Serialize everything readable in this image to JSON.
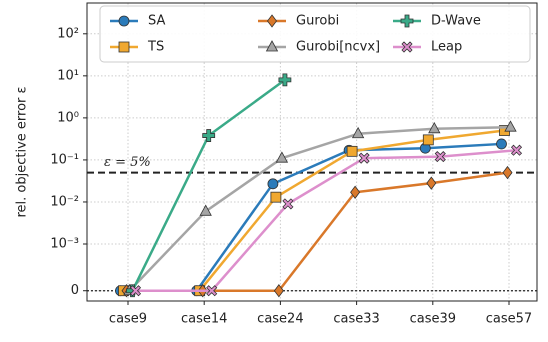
{
  "chart_data": {
    "type": "line",
    "y_label": "rel. objective error ε",
    "categories": [
      "case9",
      "case14",
      "case24",
      "case33",
      "case39",
      "case57"
    ],
    "y_scale": "symlog",
    "linthresh": 0.001,
    "ylim": [
      -0.00022,
      540
    ],
    "yticks": [
      0,
      {
        "value": 0.001,
        "label": "10⁻³"
      },
      {
        "value": 0.01,
        "label": "10⁻²"
      },
      {
        "value": 0.1,
        "label": "10⁻¹"
      },
      {
        "value": 1,
        "label": "10⁰"
      },
      {
        "value": 10,
        "label": "10¹"
      },
      {
        "value": 100,
        "label": "10²"
      }
    ],
    "grid": true,
    "legend": "upper center",
    "threshold": 0.05,
    "threshold_label": "ε = 5%",
    "series": [
      {
        "name": "SA",
        "color": "#2b7bba",
        "marker": "circle",
        "values": [
          0,
          0,
          0.027,
          0.17,
          0.19,
          0.24
        ]
      },
      {
        "name": "TS",
        "color": "#f0a830",
        "marker": "square",
        "values": [
          0,
          0,
          0.013,
          0.16,
          0.3,
          0.5
        ]
      },
      {
        "name": "Gurobi",
        "color": "#d9782a",
        "marker": "diamond",
        "values": [
          0,
          0,
          0,
          0.017,
          0.028,
          0.05
        ]
      },
      {
        "name": "Gurobi[ncvx]",
        "color": "#a5a5a5",
        "marker": "triangle",
        "values": [
          0,
          0.006,
          0.11,
          0.42,
          0.55,
          0.6
        ]
      },
      {
        "name": "D-Wave",
        "color": "#3aaa88",
        "marker": "plus",
        "values": [
          0,
          0.38,
          8,
          null,
          null,
          null
        ]
      },
      {
        "name": "Leap",
        "color": "#dd8fcc",
        "marker": "x",
        "values": [
          0,
          0,
          0.009,
          0.11,
          0.12,
          0.17
        ]
      }
    ]
  }
}
